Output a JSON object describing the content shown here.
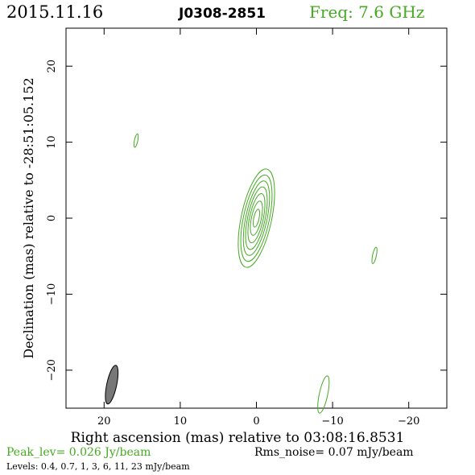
{
  "header": {
    "date": "2015.11.16",
    "source": "J0308-2851",
    "freq": "Freq: 7.6 GHz"
  },
  "colors": {
    "accent": "#44aa22",
    "axes": "#000000",
    "beam": "#777777"
  },
  "chart_data": {
    "type": "contour",
    "xlabel": "Right ascension (mas) relative to 03:08:16.8531",
    "ylabel": "Declination (mas) relative to -28:51:05.152",
    "xlim": [
      25,
      -25
    ],
    "ylim": [
      -25,
      25
    ],
    "x_ticks": [
      20,
      10,
      0,
      -10,
      -20
    ],
    "x_tick_labels": [
      "20",
      "10",
      "0",
      "−10",
      "−20"
    ],
    "y_ticks": [
      20,
      10,
      0,
      -10,
      -20
    ],
    "y_tick_labels": [
      "20",
      "10",
      "0",
      "−10",
      "−20"
    ],
    "peak_level": "Peak_lev=  0.026 Jy/beam",
    "rms_noise": "Rms_noise= 0.07 mJy/beam",
    "levels_text": "Levels: 0.4, 0.7,   1,   3,   6,  11,  23 mJy/beam",
    "contour_levels_mJy": [
      0.4,
      0.7,
      1,
      3,
      6,
      11,
      23
    ],
    "core": {
      "center": [
        0,
        0
      ],
      "angle_deg": 12,
      "rings": [
        {
          "a": 6.6,
          "b": 2.0
        },
        {
          "a": 5.8,
          "b": 1.7
        },
        {
          "a": 5.0,
          "b": 1.4
        },
        {
          "a": 4.2,
          "b": 1.15
        },
        {
          "a": 3.3,
          "b": 0.9
        },
        {
          "a": 2.3,
          "b": 0.65
        },
        {
          "a": 1.2,
          "b": 0.35
        }
      ]
    },
    "noise_blobs": [
      {
        "x": 15.8,
        "y": 10.2,
        "a": 0.9,
        "b": 0.22,
        "angle_deg": 12
      },
      {
        "x": -15.5,
        "y": -4.9,
        "a": 1.1,
        "b": 0.25,
        "angle_deg": 12
      },
      {
        "x": -8.8,
        "y": -23.2,
        "a": 2.5,
        "b": 0.55,
        "angle_deg": 12
      }
    ],
    "beam": {
      "x": 19.0,
      "y": -21.9,
      "a": 2.6,
      "b": 0.65,
      "angle_deg": 12
    }
  }
}
